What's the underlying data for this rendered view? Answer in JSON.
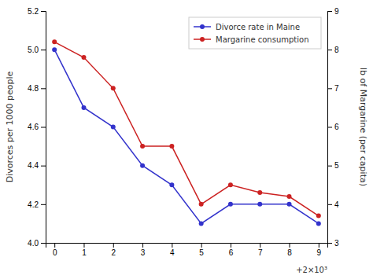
{
  "chart_data": {
    "type": "line",
    "x": [
      0,
      1,
      2,
      3,
      4,
      5,
      6,
      7,
      8,
      9
    ],
    "xlim": [
      -0.3,
      9.3
    ],
    "xticks": [
      0,
      1,
      2,
      3,
      4,
      5,
      6,
      7,
      8,
      9
    ],
    "ylabel": "Divorces per 1000 people",
    "y2label": "lb of Margarine (per capita)",
    "ylim": [
      4.0,
      5.2
    ],
    "yticks": [
      {
        "value": 4.0,
        "label": "4.0"
      },
      4.2,
      4.4,
      4.6,
      4.8,
      {
        "value": 5.0,
        "label": "5.0"
      },
      5.2
    ],
    "y2lim": [
      3.0,
      9.0
    ],
    "y2ticks": [
      3,
      4,
      5,
      6,
      7,
      8,
      9
    ],
    "series": [
      {
        "name": "Divorce rate in Maine",
        "color": "#3333cc",
        "marker": "circle",
        "values": [
          5.0,
          4.7,
          4.6,
          4.4,
          4.3,
          4.1,
          4.2,
          4.2,
          4.2,
          4.1
        ]
      },
      {
        "name": "Margarine consumption",
        "color": "#cc2222",
        "marker": "circle",
        "axis": "y2",
        "values": [
          8.2,
          7.8,
          7.0,
          5.5,
          5.5,
          4.0,
          4.5,
          4.3,
          4.2,
          3.7
        ]
      }
    ],
    "annotation": "+2×10³",
    "legend": "upper right",
    "grid": false
  }
}
